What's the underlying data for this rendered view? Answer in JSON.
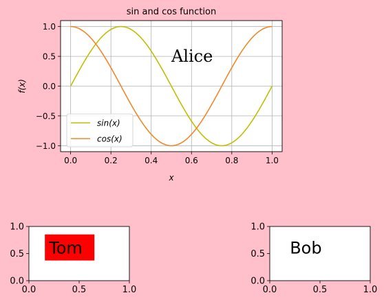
{
  "figure": {
    "background": "#ffc0cb"
  },
  "chart_data": [
    {
      "type": "line",
      "title": "sin and cos function",
      "xlabel": "x",
      "ylabel": "f(x)",
      "xlim": [
        -0.05,
        1.05
      ],
      "ylim": [
        -1.1,
        1.1
      ],
      "xticks": [
        0.0,
        0.2,
        0.4,
        0.6,
        0.8,
        1.0
      ],
      "xtick_labels": [
        "0.0",
        "0.2",
        "0.4",
        "0.6",
        "0.8",
        "1.0"
      ],
      "yticks": [
        -1.0,
        -0.5,
        0.0,
        0.5,
        1.0
      ],
      "ytick_labels": [
        "−1.0",
        "−0.5",
        "0.0",
        "0.5",
        "1.0"
      ],
      "grid": true,
      "legend": "lower-left",
      "series": [
        {
          "name": "sin(x)",
          "function": "sin(2πx)",
          "x_range": [
            0,
            1
          ],
          "color": "#bfbf00"
        },
        {
          "name": "cos(x)",
          "function": "cos(2πx)",
          "x_range": [
            0,
            1
          ],
          "color": "#f08828"
        }
      ],
      "annotations": [
        {
          "text": "Alice",
          "x": 0.5,
          "y": 0.5,
          "font": "serif",
          "color": "#000000"
        }
      ]
    },
    {
      "type": "scatter",
      "xlim": [
        0,
        1
      ],
      "ylim": [
        0,
        1
      ],
      "xticks": [
        0.0,
        0.5,
        1.0
      ],
      "xtick_labels": [
        "0.0",
        "0.5",
        "1.0"
      ],
      "yticks": [
        0.0,
        0.5,
        1.0
      ],
      "ytick_labels": [
        "0.0",
        "0.5",
        "1.0"
      ],
      "annotations": [
        {
          "text": "Tom",
          "x": 0.2,
          "y": 0.6,
          "color": "#000000",
          "background": "#ff0000"
        }
      ]
    },
    {
      "type": "scatter",
      "xlim": [
        0,
        1
      ],
      "ylim": [
        0,
        1
      ],
      "xticks": [
        0.0,
        0.5,
        1.0
      ],
      "xtick_labels": [
        "0.0",
        "0.5",
        "1.0"
      ],
      "yticks": [
        0.0,
        0.5,
        1.0
      ],
      "ytick_labels": [
        "0.0",
        "0.5",
        "1.0"
      ],
      "annotations": [
        {
          "text": "Bob",
          "x": 0.2,
          "y": 0.6,
          "color": "#bfbf00"
        }
      ]
    }
  ]
}
